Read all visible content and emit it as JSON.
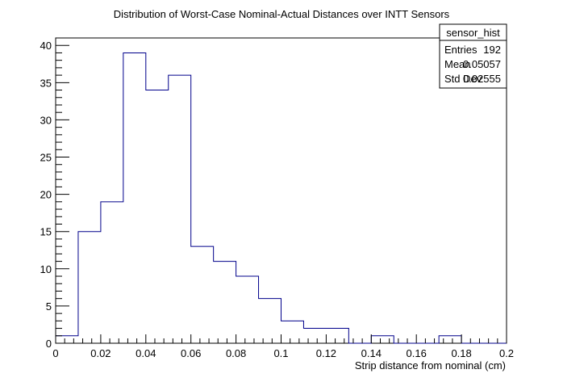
{
  "chart_data": {
    "type": "bar",
    "title": "Distribution of Worst-Case Nominal-Actual Distances over INTT Sensors",
    "xlabel": "Strip distance from nominal (cm)",
    "ylabel": "",
    "xlim": [
      0,
      0.2
    ],
    "ylim": [
      0,
      41
    ],
    "bin_width": 0.01,
    "bin_edges": [
      0,
      0.01,
      0.02,
      0.03,
      0.04,
      0.05,
      0.06,
      0.07,
      0.08,
      0.09,
      0.1,
      0.11,
      0.12,
      0.13,
      0.14,
      0.15,
      0.16,
      0.17,
      0.18,
      0.19,
      0.2
    ],
    "values": [
      1,
      15,
      19,
      39,
      34,
      36,
      13,
      11,
      9,
      6,
      3,
      2,
      2,
      0,
      1,
      0,
      0,
      1,
      0,
      0
    ],
    "x_ticks": [
      "0",
      "0.02",
      "0.04",
      "0.06",
      "0.08",
      "0.1",
      "0.12",
      "0.14",
      "0.16",
      "0.18",
      "0.2"
    ],
    "y_ticks": [
      "0",
      "5",
      "10",
      "15",
      "20",
      "25",
      "30",
      "35",
      "40"
    ],
    "line_color": "#00008b",
    "grid": false,
    "stats_box": {
      "name": "sensor_hist",
      "placement": "top-right",
      "rows": [
        {
          "label": "Entries",
          "value": "192"
        },
        {
          "label": "Mean",
          "value": "0.05057"
        },
        {
          "label": "Std Dev",
          "value": "0.02555"
        }
      ]
    }
  }
}
